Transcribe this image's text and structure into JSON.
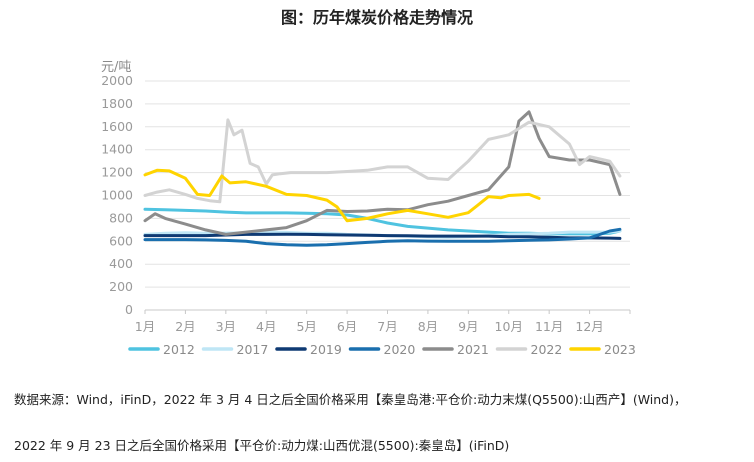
{
  "title": "图：历年煤炭价格走势情况",
  "source_line1": "数据来源：Wind，iFinD，2022 年 3 月 4 日之后全国价格采用【秦皇岛港:平仓价:动力末煤(Q5500):山西产】(Wind)，",
  "source_line2": "2022 年 9 月 23 日之后全国价格采用【平仓价:动力煤:山西优混(5500):秦皇岛】(iFinD)",
  "chart_data": {
    "type": "line",
    "ylabel": "元/吨",
    "ylim": [
      0,
      2000
    ],
    "yticks": [
      0,
      200,
      400,
      600,
      800,
      1000,
      1200,
      1400,
      1600,
      1800,
      2000
    ],
    "x_months": [
      1,
      13
    ],
    "categories": [
      "1月",
      "2月",
      "3月",
      "4月",
      "5月",
      "6月",
      "7月",
      "8月",
      "9月",
      "10月",
      "11月",
      "12月"
    ],
    "grid": "horizontal",
    "legend_position": "bottom",
    "series": [
      {
        "name": "2012",
        "color": "#4fc3e0",
        "x": [
          1,
          1.5,
          2,
          2.5,
          3,
          3.5,
          4,
          4.5,
          5,
          5.5,
          6,
          6.5,
          7,
          7.5,
          8,
          8.5,
          9,
          9.5,
          10,
          10.5,
          11,
          11.5,
          12,
          12.5,
          12.75
        ],
        "values": [
          880,
          875,
          870,
          865,
          855,
          848,
          848,
          848,
          845,
          840,
          830,
          800,
          760,
          730,
          715,
          700,
          690,
          680,
          670,
          670,
          665,
          665,
          665,
          670,
          690
        ]
      },
      {
        "name": "2017",
        "color": "#bfe6f5",
        "x": [
          1,
          1.5,
          2,
          2.5,
          3,
          3.5,
          4,
          4.5,
          5,
          5.5,
          6,
          6.5,
          7,
          7.5,
          8,
          8.5,
          9,
          9.5,
          10,
          10.5,
          11,
          11.5,
          12,
          12.5,
          12.75
        ],
        "values": [
          660,
          670,
          675,
          670,
          672,
          675,
          680,
          678,
          670,
          670,
          660,
          655,
          650,
          645,
          640,
          635,
          640,
          650,
          660,
          665,
          670,
          680,
          680,
          680,
          690
        ]
      },
      {
        "name": "2019",
        "color": "#0f3a73",
        "x": [
          1,
          1.5,
          2,
          2.5,
          3,
          3.5,
          4,
          4.5,
          5,
          5.5,
          6,
          6.5,
          7,
          7.5,
          8,
          8.5,
          9,
          9.5,
          10,
          10.5,
          11,
          11.5,
          12,
          12.5,
          12.75
        ],
        "values": [
          650,
          650,
          650,
          650,
          655,
          660,
          660,
          662,
          660,
          658,
          655,
          652,
          650,
          648,
          645,
          645,
          645,
          645,
          640,
          640,
          635,
          630,
          630,
          628,
          625
        ]
      },
      {
        "name": "2020",
        "color": "#1a6fae",
        "x": [
          1,
          1.5,
          2,
          2.5,
          3,
          3.5,
          4,
          4.5,
          5,
          5.5,
          6,
          6.5,
          7,
          7.5,
          8,
          8.5,
          9,
          9.5,
          10,
          10.5,
          11,
          11.5,
          12,
          12.5,
          12.75
        ],
        "values": [
          615,
          615,
          615,
          612,
          608,
          600,
          580,
          570,
          565,
          570,
          580,
          590,
          600,
          605,
          602,
          600,
          600,
          600,
          605,
          610,
          612,
          620,
          630,
          690,
          705
        ]
      },
      {
        "name": "2021",
        "color": "#8c8c8c",
        "x": [
          1,
          1.25,
          1.5,
          2,
          2.5,
          3,
          3.5,
          4,
          4.5,
          5,
          5.5,
          6,
          6.5,
          7,
          7.5,
          8,
          8.5,
          9,
          9.5,
          10,
          10.25,
          10.5,
          10.75,
          11,
          11.5,
          12,
          12.5,
          12.75
        ],
        "values": [
          780,
          840,
          800,
          750,
          700,
          660,
          680,
          700,
          720,
          780,
          870,
          860,
          865,
          880,
          875,
          920,
          950,
          1000,
          1050,
          1250,
          1650,
          1730,
          1500,
          1340,
          1310,
          1310,
          1270,
          1010
        ]
      },
      {
        "name": "2022",
        "color": "#d3d3d3",
        "x": [
          1,
          1.3,
          1.6,
          2,
          2.3,
          2.6,
          2.85,
          3.05,
          3.2,
          3.4,
          3.6,
          3.8,
          4.0,
          4.15,
          4.35,
          4.6,
          5,
          5.5,
          6,
          6.5,
          7,
          7.5,
          8,
          8.5,
          9,
          9.5,
          10,
          10.5,
          11,
          11.5,
          11.75,
          12,
          12.5,
          12.75
        ],
        "values": [
          1000,
          1030,
          1050,
          1010,
          975,
          955,
          945,
          1660,
          1530,
          1570,
          1280,
          1250,
          1100,
          1180,
          1190,
          1200,
          1200,
          1200,
          1210,
          1220,
          1250,
          1250,
          1150,
          1140,
          1300,
          1490,
          1530,
          1640,
          1600,
          1450,
          1270,
          1340,
          1300,
          1170
        ]
      },
      {
        "name": "2023",
        "color": "#ffd400",
        "x": [
          1,
          1.3,
          1.6,
          2,
          2.3,
          2.6,
          2.9,
          3.1,
          3.5,
          4,
          4.5,
          5,
          5.5,
          5.75,
          6,
          6.5,
          7,
          7.5,
          8,
          8.5,
          9,
          9.25,
          9.5,
          9.8,
          10,
          10.5,
          10.75
        ],
        "values": [
          1180,
          1220,
          1215,
          1150,
          1010,
          1000,
          1170,
          1110,
          1120,
          1080,
          1010,
          1000,
          960,
          900,
          780,
          800,
          840,
          870,
          840,
          810,
          850,
          920,
          990,
          980,
          1000,
          1010,
          975
        ]
      }
    ]
  }
}
